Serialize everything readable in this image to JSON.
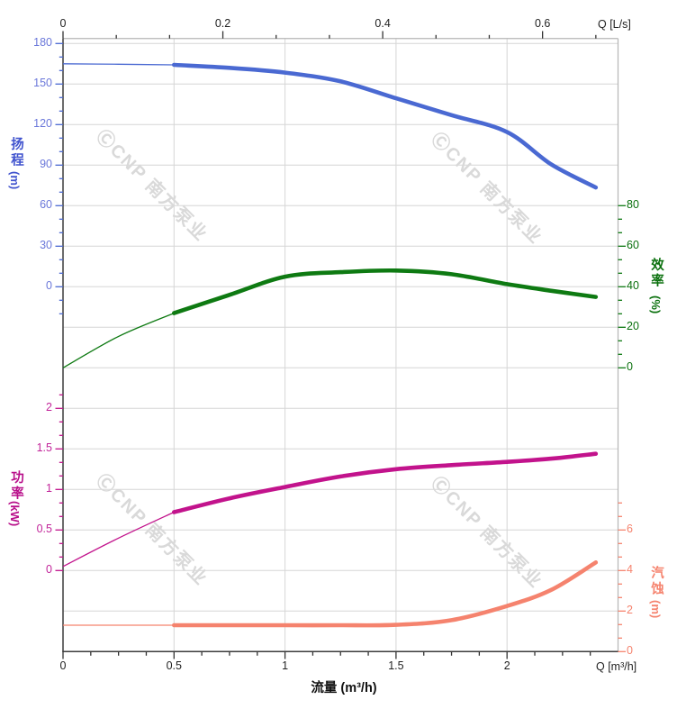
{
  "watermark": {
    "text": "ⒸCNP 南方泵业"
  },
  "chart_data": {
    "type": "line",
    "title": "",
    "x_axis_bottom": {
      "title": "流量 (m³/h)",
      "end_label": "Q [m³/h]",
      "unit": "m³/h",
      "majors": [
        0,
        0.5,
        1,
        1.5,
        2
      ],
      "minor_step": 0.125,
      "range": [
        0,
        2.5
      ],
      "label_color": "#222222"
    },
    "x_axis_top": {
      "end_label": "Q [L/s]",
      "unit": "L/s",
      "majors": [
        0,
        0.2,
        0.4,
        0.6
      ],
      "minor_step": 0.0667,
      "range": [
        0,
        0.694
      ],
      "label_color": "#222222"
    },
    "y_axes": {
      "head": {
        "title": "扬程",
        "unit": "(m)",
        "side": "left",
        "color": "#4a69d2",
        "label_color": "#6b78da",
        "title_color": "#4053ce",
        "majors": [
          0,
          30,
          60,
          90,
          120,
          150,
          180
        ],
        "minor_step": 10,
        "range": [
          0,
          180
        ]
      },
      "efficiency": {
        "title": "效率",
        "unit": "(%)",
        "side": "right",
        "color": "#0e7a12",
        "label_color": "#0a700d",
        "title_color": "#0a700d",
        "majors": [
          0,
          20,
          40,
          60,
          80
        ],
        "minor_step": 6.667,
        "range": [
          0,
          80
        ]
      },
      "power": {
        "title": "功率",
        "unit": "(kW)",
        "side": "left",
        "color": "#c2138c",
        "label_color": "#c2259a",
        "title_color": "#b80f8a",
        "majors": [
          0,
          0.5,
          1,
          1.5,
          2
        ],
        "minor_step": 0.1667,
        "range": [
          0,
          2
        ]
      },
      "npsh": {
        "title": "汽蚀",
        "unit": "(m)",
        "side": "right",
        "color": "#f5836e",
        "label_color": "#f5836e",
        "title_color": "#f5836e",
        "majors": [
          0,
          2,
          4,
          6
        ],
        "minor_step": 0.667,
        "range": [
          0,
          6
        ]
      }
    },
    "thick_curve_from_q": 0.5,
    "curve_end_q": 2.4,
    "series": [
      {
        "key": "head",
        "name": "扬程",
        "axis": "head",
        "color": "#4a69d2",
        "points": [
          [
            0,
            165
          ],
          [
            0.25,
            164.7
          ],
          [
            0.5,
            164.2
          ],
          [
            0.75,
            162
          ],
          [
            1,
            158.5
          ],
          [
            1.25,
            152
          ],
          [
            1.5,
            139.5
          ],
          [
            1.75,
            127
          ],
          [
            2,
            114.5
          ],
          [
            2.2,
            90.5
          ],
          [
            2.4,
            73.5
          ]
        ]
      },
      {
        "key": "efficiency",
        "name": "效率",
        "axis": "efficiency",
        "color": "#0e7a12",
        "points": [
          [
            0,
            0
          ],
          [
            0.25,
            15.5
          ],
          [
            0.5,
            27
          ],
          [
            0.75,
            36
          ],
          [
            1,
            45
          ],
          [
            1.25,
            47.2
          ],
          [
            1.5,
            48
          ],
          [
            1.75,
            46.2
          ],
          [
            2,
            41.3
          ],
          [
            2.2,
            38
          ],
          [
            2.4,
            35
          ]
        ]
      },
      {
        "key": "power",
        "name": "功率",
        "axis": "power",
        "color": "#c2138c",
        "points": [
          [
            0,
            0.05
          ],
          [
            0.25,
            0.4
          ],
          [
            0.5,
            0.72
          ],
          [
            0.75,
            0.89
          ],
          [
            1,
            1.03
          ],
          [
            1.25,
            1.16
          ],
          [
            1.5,
            1.25
          ],
          [
            1.75,
            1.3
          ],
          [
            2,
            1.34
          ],
          [
            2.2,
            1.38
          ],
          [
            2.4,
            1.44
          ]
        ]
      },
      {
        "key": "npsh",
        "name": "汽蚀",
        "axis": "npsh",
        "color": "#f5836e",
        "points": [
          [
            0,
            1.3
          ],
          [
            0.25,
            1.3
          ],
          [
            0.5,
            1.3
          ],
          [
            0.75,
            1.3
          ],
          [
            1,
            1.3
          ],
          [
            1.25,
            1.3
          ],
          [
            1.5,
            1.32
          ],
          [
            1.75,
            1.55
          ],
          [
            2,
            2.25
          ],
          [
            2.2,
            3.05
          ],
          [
            2.4,
            4.4
          ]
        ]
      }
    ],
    "grid": "on",
    "grid_color": "#d6d6d6",
    "frame_dark_color": "#3c3c3c",
    "frame_light_color": "#b5b5b5"
  }
}
